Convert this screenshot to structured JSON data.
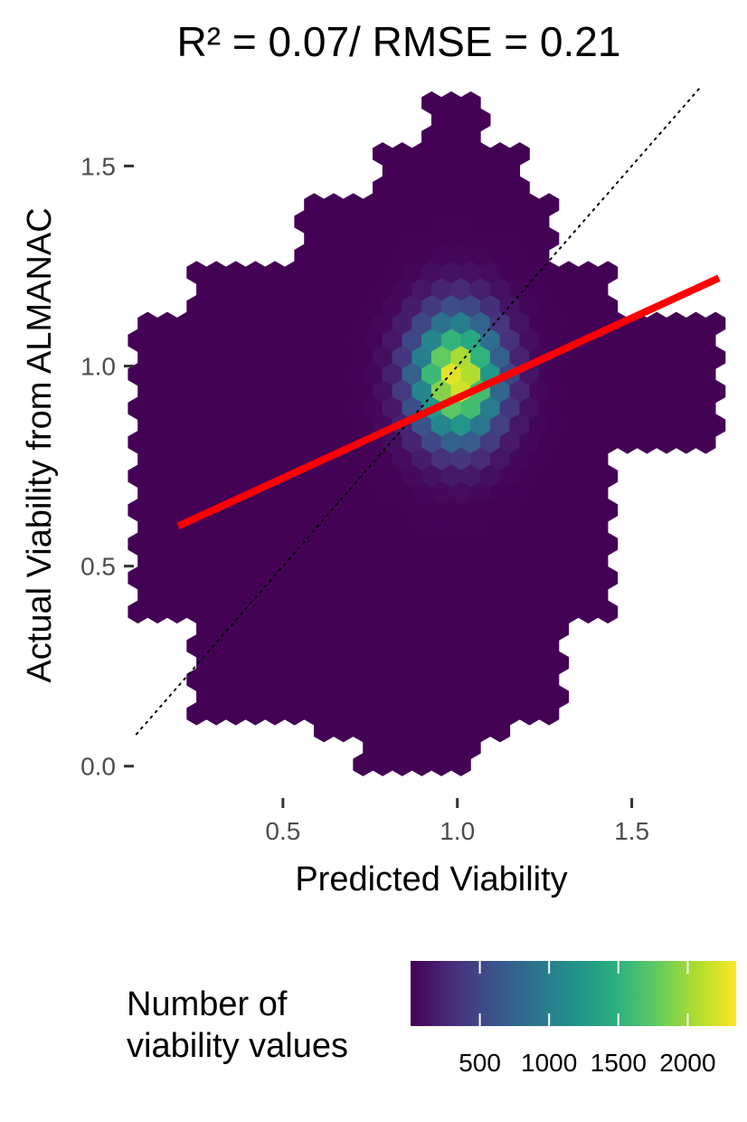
{
  "chart_data": {
    "type": "hexbin",
    "title": "R² = 0.07/ RMSE = 0.21",
    "xlabel": "Predicted Viability",
    "ylabel": "Actual Viability from ALMANAC",
    "xlim": [
      0.0,
      1.75
    ],
    "ylim": [
      -0.03,
      1.7
    ],
    "x_ticks": [
      0.5,
      1.0,
      1.5
    ],
    "x_tick_labels": [
      "0.5",
      "1.0",
      "1.5"
    ],
    "y_ticks": [
      0.0,
      0.5,
      1.0,
      1.5
    ],
    "y_tick_labels": [
      "0.0",
      "0.5",
      "1.0",
      "1.5"
    ],
    "grid": false,
    "background": "#ffffff",
    "identity_line": {
      "slope": 1,
      "intercept": 0,
      "style": "dotted",
      "color": "#000000"
    },
    "fit_line": {
      "x": [
        0.2,
        1.75
      ],
      "y": [
        0.6,
        1.22
      ],
      "color": "#ff0000"
    },
    "density_peak": {
      "x": 1.0,
      "y": 0.97,
      "count": 2300
    },
    "legend": {
      "title_lines": [
        "Number of",
        "viability values"
      ],
      "ticks": [
        500,
        1000,
        1500,
        2000
      ],
      "tick_labels": [
        "500",
        "1000",
        "1500",
        "2000"
      ],
      "range": [
        0,
        2350
      ],
      "colormap": "viridis",
      "position": "bottom"
    }
  }
}
